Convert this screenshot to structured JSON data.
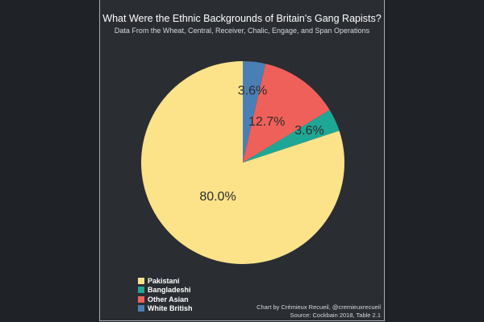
{
  "chart_data": {
    "type": "pie",
    "title": "What Were the Ethnic Backgrounds of Britain's Gang Rapists?",
    "subtitle": "Data From the Wheat, Central, Receiver, Chalic, Engage, and Span Operations",
    "slices": [
      {
        "name": "White British",
        "value": 3.6,
        "label": "3.6%",
        "color": "#4a7fb5"
      },
      {
        "name": "Other Asian",
        "value": 12.7,
        "label": "12.7%",
        "color": "#f0605a"
      },
      {
        "name": "Bangladeshi",
        "value": 3.6,
        "label": "3.6%",
        "color": "#1fa795"
      },
      {
        "name": "Pakistani",
        "value": 80.0,
        "label": "80.0%",
        "color": "#fce38a"
      }
    ],
    "legend_order": [
      "Pakistani",
      "Bangladeshi",
      "Other Asian",
      "White British"
    ],
    "legend_position": "bottom-left",
    "start_angle": "top",
    "direction": "clockwise"
  },
  "credit": {
    "line1": "Chart by Crémieux Recueil, @cremieuxrecueil",
    "line2": "Source: Cockbain 2018, Table 2.1"
  }
}
